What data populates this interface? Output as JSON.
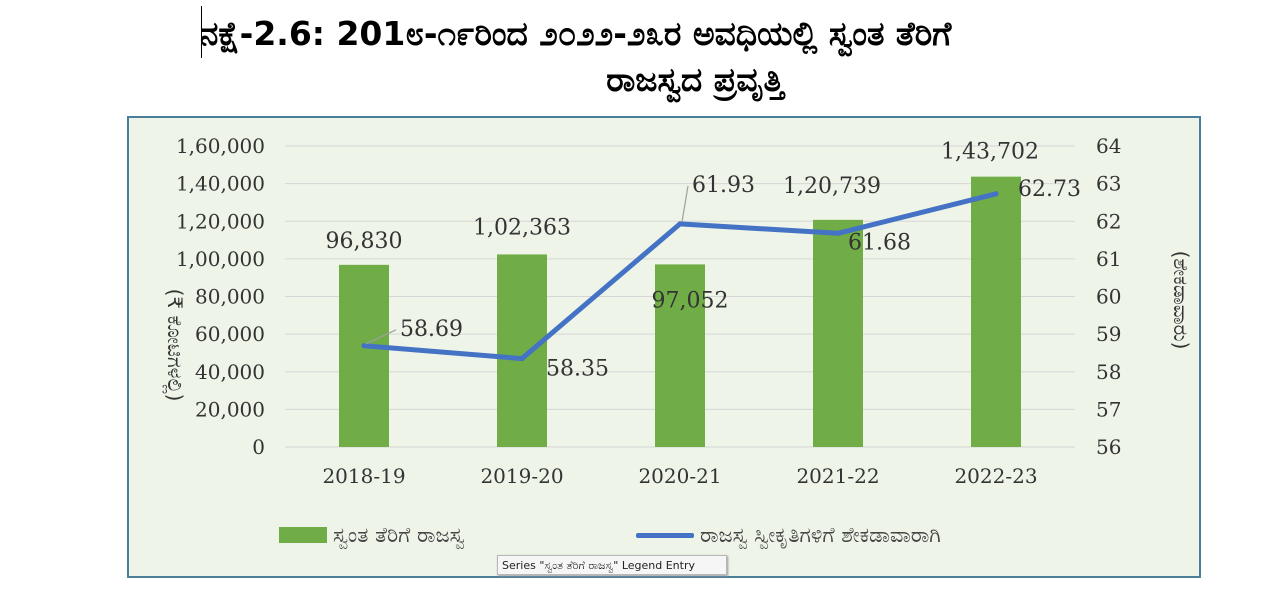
{
  "title": {
    "line1": "ನಕ್ಷೆ-2.6: 201೮-೧೯ರಿಂದ ೨೦೨೨-೨೩ರ ಅವಧಿಯಲ್ಲಿ ಸ್ವಂತ ತೆರಿಗೆ",
    "line2": "ರಾಜಸ್ವದ ಪ್ರವೃತ್ತಿ"
  },
  "tooltip": "Series \"ಸ್ವಂತ ತೆರಿಗೆ ರಾಜಸ್ವ\" Legend Entry",
  "colors": {
    "bar": "#70ad47",
    "line": "#4472c4",
    "panel": "#eef4e8",
    "border": "#4a7f99"
  },
  "chart_data": {
    "type": "bar",
    "categories": [
      "2018-19",
      "2019-20",
      "2020-21",
      "2021-22",
      "2022-23"
    ],
    "ylabel": "(₹ ಕೋಟಿಗಳಲ್ಲಿ)",
    "y2label": "(ಶೇಕಡಾವಾರು)",
    "ylim": [
      0,
      160000
    ],
    "y2lim": [
      56,
      64
    ],
    "yticks": [
      "0",
      "20,000",
      "40,000",
      "60,000",
      "80,000",
      "1,00,000",
      "1,20,000",
      "1,40,000",
      "1,60,000"
    ],
    "y2ticks": [
      "56",
      "57",
      "58",
      "59",
      "60",
      "61",
      "62",
      "63",
      "64"
    ],
    "grid": true,
    "legend": "bottom",
    "series": [
      {
        "name": "ಸ್ವಂತ ತೆರಿಗೆ ರಾಜಸ್ವ",
        "type": "bar",
        "axis": "left",
        "values": [
          96830,
          102363,
          97052,
          120739,
          143702
        ],
        "labels": [
          "96,830",
          "1,02,363",
          "97,052",
          "1,20,739",
          "1,43,702"
        ]
      },
      {
        "name": "ರಾಜಸ್ವ ಸ್ವೀಕೃತಿಗಳಿಗೆ ಶೇಕಡಾವಾರಾಗಿ",
        "type": "line",
        "axis": "right",
        "values": [
          58.69,
          58.35,
          61.93,
          61.68,
          62.73
        ],
        "labels": [
          "58.69",
          "58.35",
          "61.93",
          "61.68",
          "62.73"
        ]
      }
    ]
  }
}
